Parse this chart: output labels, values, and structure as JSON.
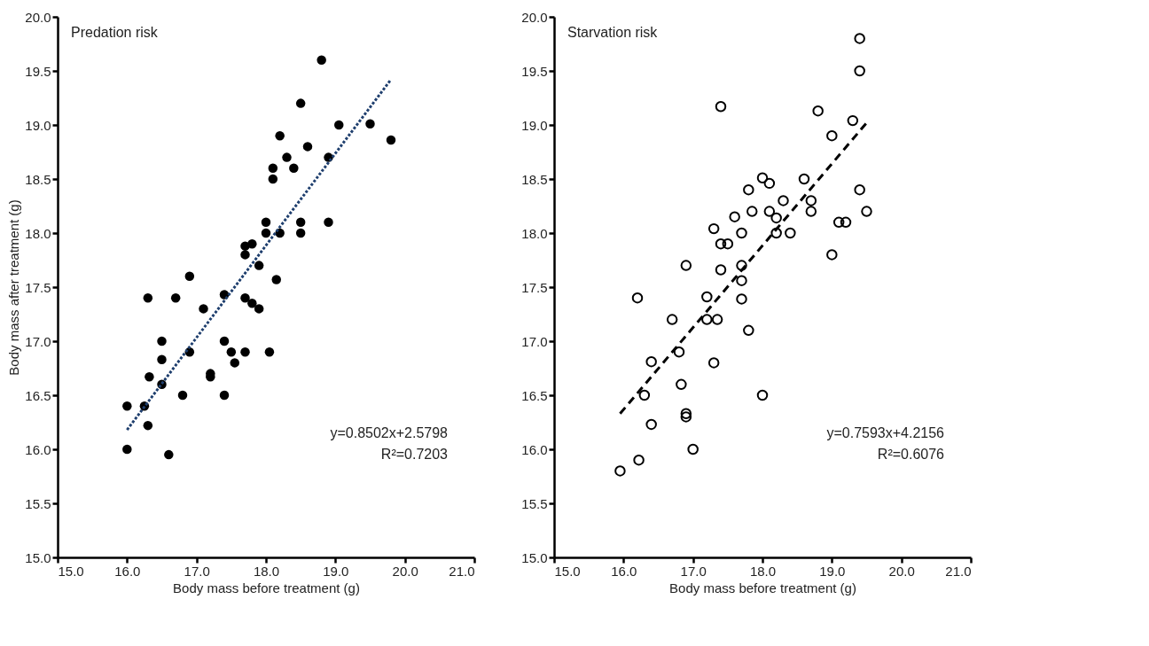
{
  "chart_data": [
    {
      "type": "scatter",
      "xlabel": "Body mass before treatment (g)",
      "ylabel": "Body mass after treatment (g)",
      "annotations": [
        "Predation risk",
        "y=0.8502x+2.5798",
        "R²=0.7203"
      ],
      "xlim": [
        15.0,
        21.0
      ],
      "ylim": [
        15.0,
        20.0
      ],
      "xticks": [
        {
          "value": 15,
          "label": "15.0"
        },
        {
          "value": 16,
          "label": "16.0"
        },
        {
          "value": 17,
          "label": "17.0"
        },
        {
          "value": 18,
          "label": "18.0"
        },
        {
          "value": 19,
          "label": "19.0"
        },
        {
          "value": 20,
          "label": "20.0"
        },
        {
          "value": 21,
          "label": "21.0"
        }
      ],
      "yticks": [
        {
          "value": 15,
          "label": "15.0"
        },
        15.5,
        {
          "value": 16,
          "label": "16.0"
        },
        16.5,
        {
          "value": 17,
          "label": "17.0"
        },
        17.5,
        {
          "value": 18,
          "label": "18.0"
        },
        18.5,
        {
          "value": 19,
          "label": "19.0"
        },
        19.5,
        {
          "value": 20,
          "label": "20.0"
        }
      ],
      "grid": false,
      "legend": false,
      "marker": "circle",
      "series": [
        {
          "color": "#000000",
          "x": [
            16.0,
            16.0,
            16.25,
            16.3,
            16.32,
            16.3,
            16.5,
            16.5,
            16.5,
            16.6,
            16.7,
            16.8,
            16.9,
            16.9,
            17.1,
            17.2,
            17.2,
            17.4,
            17.4,
            17.4,
            17.5,
            17.55,
            17.7,
            17.7,
            17.7,
            17.7,
            17.8,
            17.8,
            17.9,
            17.9,
            18.0,
            18.0,
            18.05,
            18.1,
            18.1,
            18.15,
            18.2,
            18.2,
            18.3,
            18.4,
            18.5,
            18.5,
            18.5,
            18.6,
            18.8,
            18.9,
            18.9,
            19.05,
            19.5,
            19.8
          ],
          "values": [
            16.4,
            16.0,
            16.4,
            16.22,
            16.67,
            17.4,
            17.0,
            16.83,
            16.6,
            15.95,
            17.4,
            16.5,
            16.9,
            17.6,
            17.3,
            16.7,
            16.67,
            17.43,
            17.0,
            16.5,
            16.9,
            16.8,
            16.9,
            17.4,
            17.8,
            17.88,
            17.9,
            17.35,
            17.3,
            17.7,
            18.1,
            18.0,
            16.9,
            18.5,
            18.6,
            17.57,
            18.9,
            18.0,
            18.7,
            18.6,
            19.2,
            18.1,
            18.0,
            18.8,
            19.6,
            18.7,
            18.1,
            19.0,
            19.01,
            18.86
          ]
        },
        {
          "type": "line",
          "marker": "none",
          "color": "#1f3f6e",
          "line_style": "dotted",
          "x": [
            16.0,
            19.8
          ],
          "values": [
            16.18,
            19.42
          ]
        }
      ]
    },
    {
      "type": "scatter",
      "xlabel": "Body mass before treatment (g)",
      "annotations": [
        "Starvation risk",
        "y=0.7593x+4.2156",
        "R²=0.6076"
      ],
      "xlim": [
        15.0,
        21.0
      ],
      "ylim": [
        15.0,
        20.0
      ],
      "xticks": [
        {
          "value": 15,
          "label": "15.0"
        },
        {
          "value": 16,
          "label": "16.0"
        },
        {
          "value": 17,
          "label": "17.0"
        },
        {
          "value": 18,
          "label": "18.0"
        },
        {
          "value": 19,
          "label": "19.0"
        },
        {
          "value": 20,
          "label": "20.0"
        },
        {
          "value": 21,
          "label": "21.0"
        }
      ],
      "yticks": [
        {
          "value": 15,
          "label": "15.0"
        },
        15.5,
        {
          "value": 16,
          "label": "16.0"
        },
        16.5,
        {
          "value": 17,
          "label": "17.0"
        },
        17.5,
        {
          "value": 18,
          "label": "18.0"
        },
        18.5,
        {
          "value": 19,
          "label": "19.0"
        },
        19.5,
        {
          "value": 20,
          "label": "20.0"
        }
      ],
      "grid": false,
      "legend": false,
      "marker": "circle",
      "series": [
        {
          "color": "#000000",
          "x": [
            15.95,
            16.2,
            16.22,
            16.3,
            16.4,
            16.4,
            16.7,
            16.8,
            16.83,
            16.9,
            16.9,
            16.9,
            17.0,
            17.2,
            17.2,
            17.3,
            17.3,
            17.35,
            17.4,
            17.4,
            17.4,
            17.5,
            17.6,
            17.7,
            17.7,
            17.7,
            17.7,
            17.8,
            17.8,
            17.85,
            18.0,
            18.0,
            18.1,
            18.1,
            18.2,
            18.2,
            18.3,
            18.4,
            18.6,
            18.7,
            18.7,
            18.8,
            19.0,
            19.0,
            19.1,
            19.2,
            19.3,
            19.4,
            19.4,
            19.4,
            19.5
          ],
          "values": [
            15.8,
            17.4,
            15.9,
            16.5,
            16.81,
            16.23,
            17.2,
            16.9,
            16.6,
            16.33,
            16.3,
            17.7,
            16.0,
            17.41,
            17.2,
            16.8,
            18.04,
            17.2,
            19.17,
            17.9,
            17.66,
            17.9,
            18.15,
            18.0,
            17.7,
            17.56,
            17.39,
            18.4,
            17.1,
            18.2,
            18.51,
            16.5,
            18.46,
            18.2,
            18.0,
            18.14,
            18.3,
            18.0,
            18.5,
            18.3,
            18.2,
            19.13,
            18.9,
            17.8,
            18.1,
            18.1,
            19.04,
            19.8,
            19.5,
            18.4,
            18.2
          ]
        },
        {
          "type": "line",
          "marker": "none",
          "color": "#000000",
          "line_style": "dashed",
          "x": [
            15.95,
            19.5
          ],
          "values": [
            16.33,
            19.02
          ]
        }
      ]
    }
  ]
}
